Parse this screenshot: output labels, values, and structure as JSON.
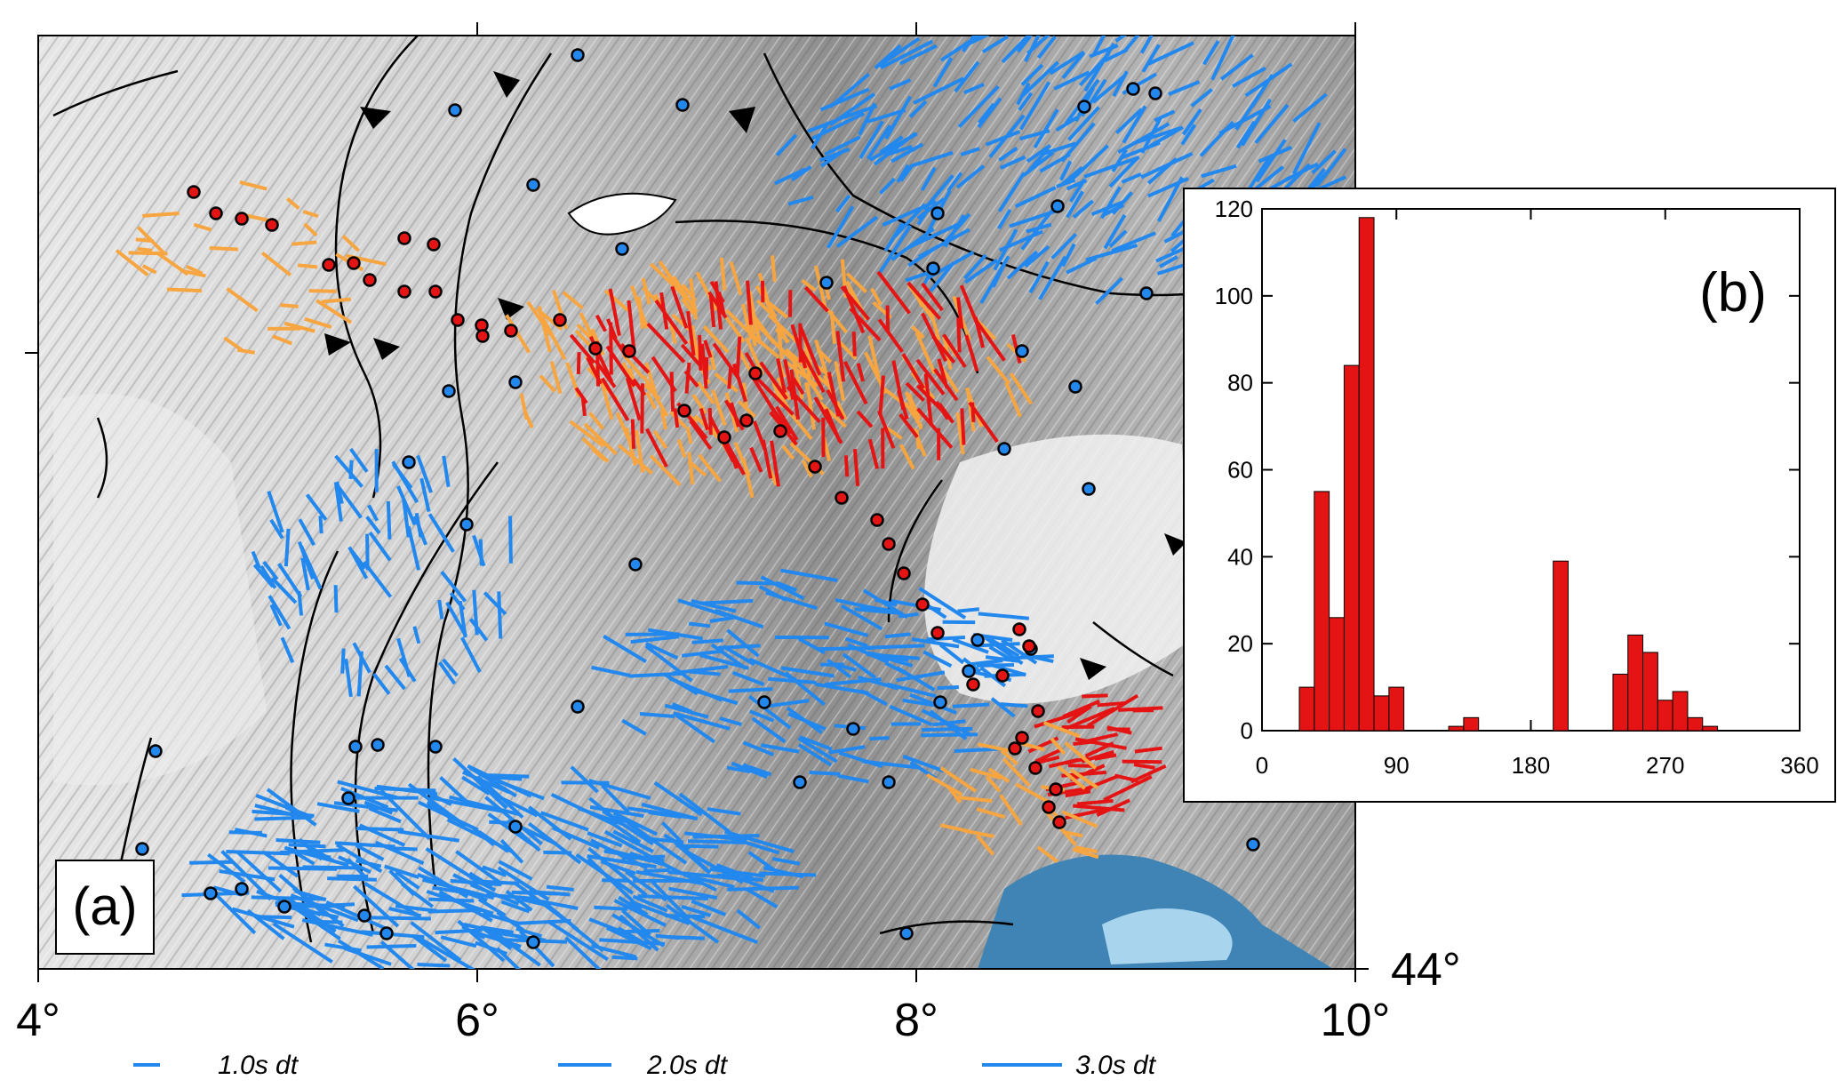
{
  "map": {
    "panel_label": "(a)",
    "x_tick_labels": [
      "4°",
      "6°",
      "8°",
      "10°"
    ],
    "y_tick_labels": [
      "44°"
    ],
    "x_range_deg": [
      4,
      10
    ],
    "colors": {
      "blue": "#2288ee",
      "orange": "#f7a540",
      "red": "#e41414",
      "sea": "#3f84b4",
      "sea_light": "#a8d4ee"
    },
    "legend": [
      {
        "label": "1.0s dt",
        "color": "#2288ee"
      },
      {
        "label": "2.0s dt",
        "color": "#2288ee"
      },
      {
        "label": "3.0s dt",
        "color": "#2288ee"
      }
    ]
  },
  "chart_data": {
    "type": "bar",
    "title": "",
    "panel_label": "(b)",
    "xlabel": "",
    "ylabel": "",
    "xlim": [
      0,
      360
    ],
    "ylim": [
      0,
      120
    ],
    "xticks": [
      0,
      90,
      180,
      270,
      360
    ],
    "yticks": [
      0,
      20,
      40,
      60,
      80,
      100,
      120
    ],
    "bin_width": 10,
    "color": "#e41414",
    "bins": [
      {
        "x": 30,
        "value": 10
      },
      {
        "x": 40,
        "value": 55
      },
      {
        "x": 50,
        "value": 26
      },
      {
        "x": 60,
        "value": 84
      },
      {
        "x": 70,
        "value": 118
      },
      {
        "x": 80,
        "value": 8
      },
      {
        "x": 90,
        "value": 10
      },
      {
        "x": 130,
        "value": 1
      },
      {
        "x": 140,
        "value": 3
      },
      {
        "x": 200,
        "value": 39
      },
      {
        "x": 240,
        "value": 13
      },
      {
        "x": 250,
        "value": 22
      },
      {
        "x": 260,
        "value": 18
      },
      {
        "x": 270,
        "value": 7
      },
      {
        "x": 280,
        "value": 9
      },
      {
        "x": 290,
        "value": 3
      },
      {
        "x": 300,
        "value": 1
      }
    ]
  }
}
